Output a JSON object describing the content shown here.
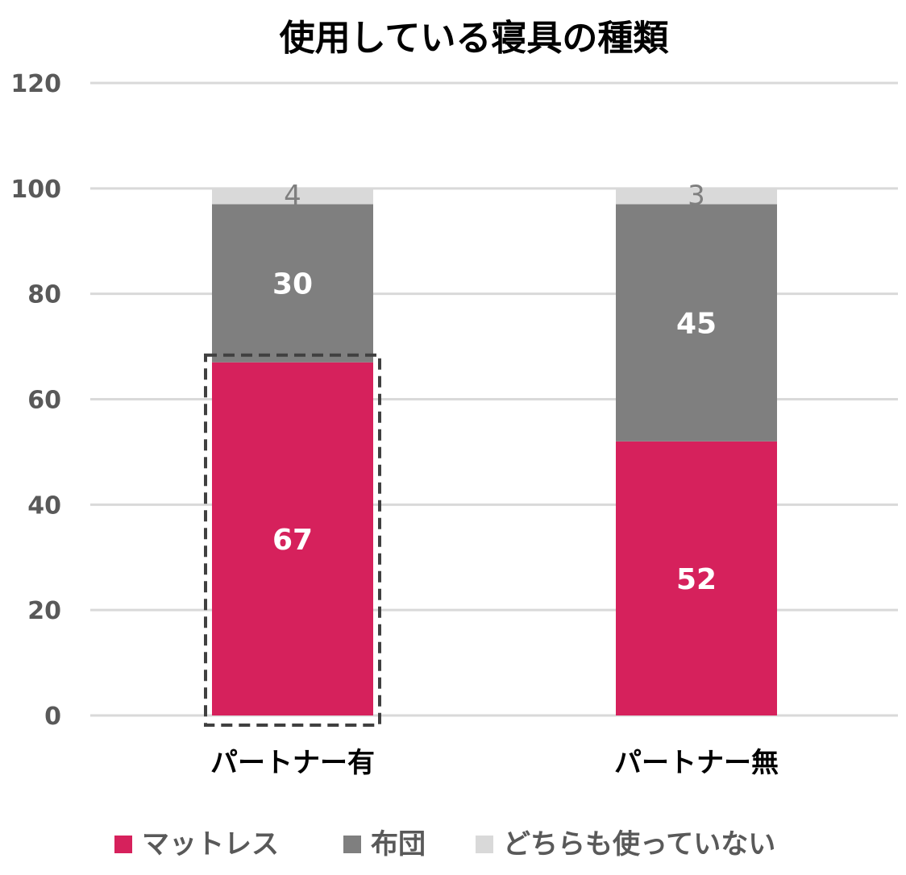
{
  "chart_data": {
    "type": "bar",
    "stacked": true,
    "title": "使用している寝具の種類",
    "categories": [
      "パートナー有",
      "パートナー無"
    ],
    "series": [
      {
        "name": "マットレス",
        "values": [
          67,
          52
        ],
        "color": "#d6215c"
      },
      {
        "name": "布団",
        "values": [
          30,
          45
        ],
        "color": "#7f7f7f"
      },
      {
        "name": "どちらも使っていない",
        "values": [
          4,
          3
        ],
        "color": "#d9d9d9"
      }
    ],
    "ylim": [
      0,
      120
    ],
    "yticks": [
      0,
      20,
      40,
      60,
      80,
      100,
      120
    ],
    "grid": true,
    "legend_position": "bottom",
    "highlight": {
      "category": "パートナー有",
      "series": "マットレス",
      "style": "dashed-box"
    }
  }
}
